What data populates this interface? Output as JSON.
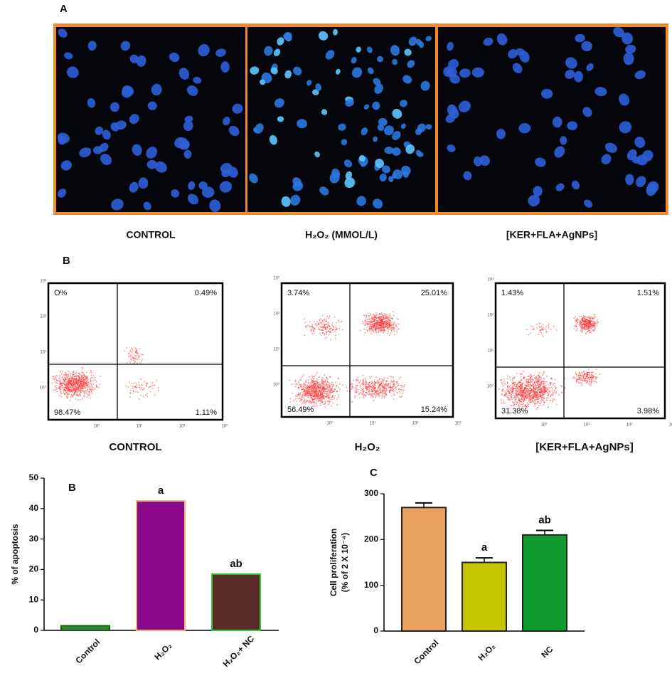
{
  "panel_a": {
    "letter": "A",
    "labels": [
      "CONTROL",
      "H₂O₂ (MMOL/L)",
      "[KER+FLA+AgNPs]"
    ]
  },
  "panel_flow": {
    "letter": "B",
    "xticks": [
      "10⁰",
      "10¹",
      "10²",
      "10³"
    ],
    "yticks": [
      "10⁰",
      "10¹",
      "10²",
      "10³"
    ],
    "panels": [
      {
        "label": "CONTROL",
        "ul": "O%",
        "ur": "0.49%",
        "ll": "98.47%",
        "lr": "1.11%"
      },
      {
        "label": "H₂O₂",
        "ul": "3.74%",
        "ur": "25.01%",
        "ll": "56.49%",
        "lr": "15.24%"
      },
      {
        "label": "[KER+FLA+AgNPs]",
        "ul": "1.43%",
        "ur": "1.51%",
        "ll": "31.38%",
        "lr": "3.98%"
      }
    ]
  },
  "chart_data": [
    {
      "type": "bar",
      "letter": "B",
      "ylabel": "% of apoptosis",
      "categories": [
        "Control",
        "H₂O₂",
        "H₂O₂+ NC"
      ],
      "values": [
        1.5,
        42.5,
        18.5
      ],
      "colors": [
        "#2e8b2e",
        "#8b0a8b",
        "#5a2b2b"
      ],
      "edge_colors": [
        "#1a5a1a",
        "#f0b070",
        "#33cc33"
      ],
      "ylim": [
        0,
        50
      ],
      "yticks": [
        0,
        10,
        20,
        30,
        40,
        50
      ],
      "annotations": [
        {
          "category": "H₂O₂",
          "text": "a"
        },
        {
          "category": "H₂O₂+ NC",
          "text": "ab"
        }
      ]
    },
    {
      "type": "bar",
      "letter": "C",
      "ylabel": [
        "Cell proliferation",
        "(% of 2 X 10⁻⁴)"
      ],
      "categories": [
        "Control",
        "H₂O₂",
        "NC"
      ],
      "values": [
        270,
        150,
        210
      ],
      "errors": [
        10,
        10,
        10
      ],
      "colors": [
        "#e8a060",
        "#c4c400",
        "#119a2e"
      ],
      "edge_colors": [
        "#222222",
        "#222222",
        "#222222"
      ],
      "ylim": [
        0,
        300
      ],
      "yticks": [
        0,
        100,
        200,
        300
      ],
      "annotations": [
        {
          "category": "H₂O₂",
          "text": "a"
        },
        {
          "category": "NC",
          "text": "ab"
        }
      ]
    }
  ]
}
